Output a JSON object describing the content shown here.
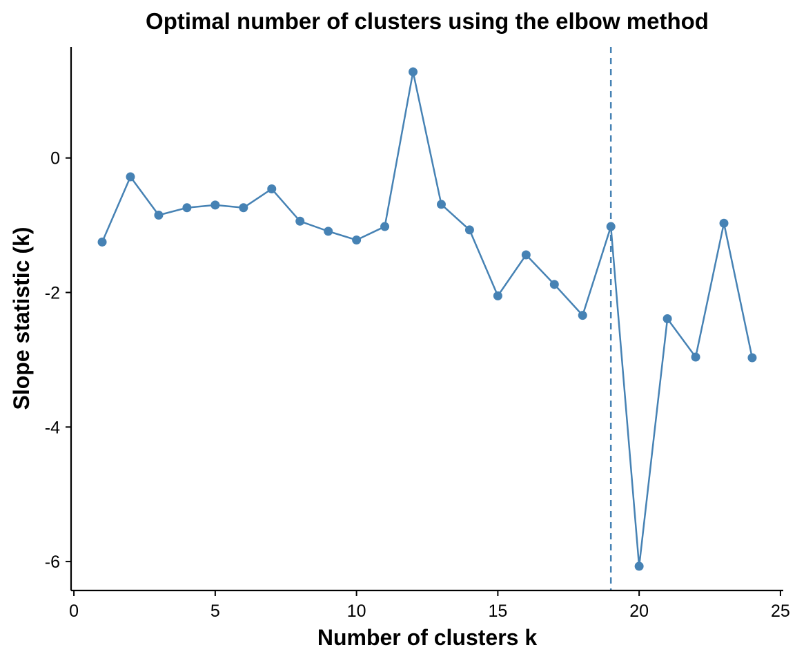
{
  "chart_data": {
    "type": "line",
    "title": "Optimal number of clusters using the elbow method",
    "xlabel": "Number of clusters k",
    "ylabel": "Slope statistic (k)",
    "xlim": [
      -0.1,
      25.1
    ],
    "ylim": [
      -6.43,
      1.65
    ],
    "x_ticks": [
      0,
      5,
      10,
      15,
      20,
      25
    ],
    "y_ticks": [
      -6,
      -4,
      -2,
      0
    ],
    "x_tick_labels": [
      "0",
      "5",
      "10",
      "15",
      "20",
      "25"
    ],
    "y_tick_labels": [
      "-6",
      "-4",
      "-2",
      "0"
    ],
    "grid": false,
    "legend": "none",
    "color": "#4682B4",
    "vline_x": 19,
    "series": [
      {
        "x": [
          1,
          2,
          3,
          4,
          5,
          6,
          7,
          8,
          9,
          10,
          11,
          12,
          13,
          14,
          15,
          16,
          17,
          18,
          19,
          20,
          21,
          22,
          23,
          24
        ],
        "values": [
          -1.25,
          -0.28,
          -0.85,
          -0.74,
          -0.7,
          -0.74,
          -0.46,
          -0.94,
          -1.09,
          -1.22,
          -1.02,
          1.28,
          -0.69,
          -1.07,
          -2.05,
          -1.44,
          -1.88,
          -2.34,
          -1.02,
          -6.07,
          -2.39,
          -2.96,
          -0.97,
          -2.97
        ]
      }
    ]
  }
}
